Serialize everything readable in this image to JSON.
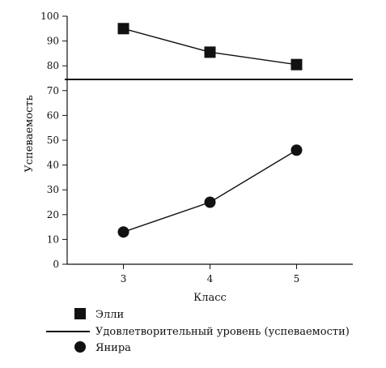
{
  "chart_data": {
    "type": "line",
    "xlabel": "Класс",
    "ylabel": "Успеваемость",
    "x": [
      3,
      4,
      5
    ],
    "xticks": [
      "3",
      "4",
      "5"
    ],
    "ylim": [
      0,
      100
    ],
    "yticks": [
      "0",
      "10",
      "20",
      "30",
      "40",
      "50",
      "60",
      "70",
      "80",
      "90",
      "100"
    ],
    "grid": false,
    "legend_placement": "bottom",
    "series": [
      {
        "name": "Элли",
        "marker": "square",
        "values": [
          95,
          85.5,
          80.5
        ]
      },
      {
        "name": "Янира",
        "marker": "circle",
        "values": [
          13,
          25,
          46
        ]
      }
    ],
    "reference_lines": [
      {
        "name": "Удовлетворительный уровень (успеваемости)",
        "y": 74.5
      }
    ]
  }
}
